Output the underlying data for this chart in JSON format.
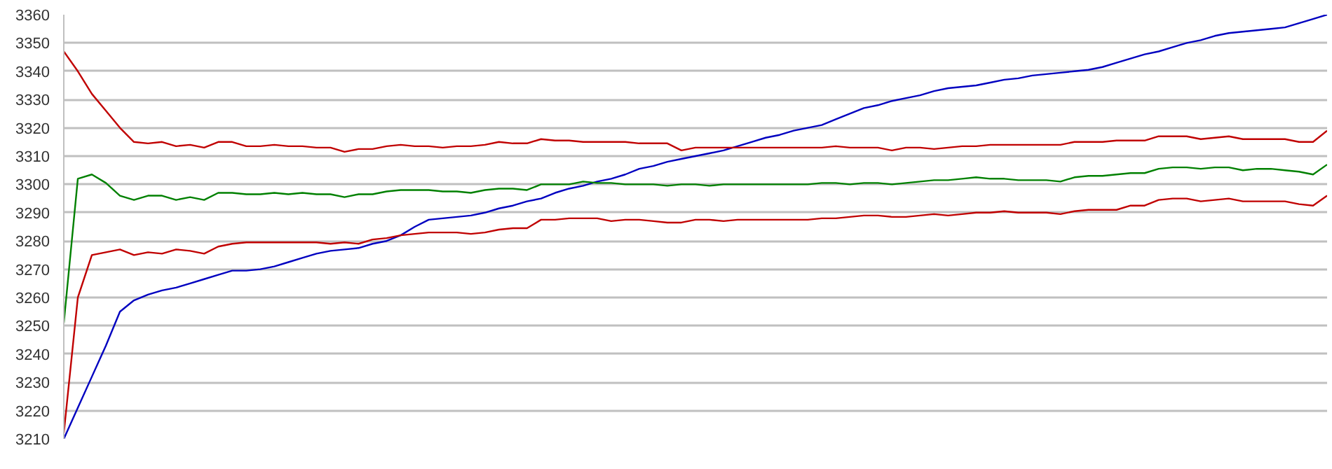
{
  "chart_data": {
    "type": "line",
    "categories": [
      null,
      null,
      null,
      null,
      null,
      null,
      null,
      null,
      null,
      null,
      null,
      null,
      null,
      null,
      null,
      null,
      null,
      null,
      null,
      null,
      null,
      null,
      null,
      null,
      null,
      null,
      null,
      null,
      null,
      null,
      null,
      null,
      null,
      null,
      null,
      null,
      null,
      null,
      null,
      null,
      null,
      null,
      null,
      null,
      null,
      null,
      null,
      null,
      null,
      null,
      null,
      null,
      null,
      null,
      null,
      null,
      null,
      null,
      null,
      null,
      null,
      null,
      null,
      null,
      null,
      null,
      null,
      null,
      null,
      null,
      null,
      null,
      null,
      null,
      null,
      null,
      null,
      null,
      null,
      null,
      null,
      null,
      null,
      null,
      null,
      null,
      null,
      null,
      null,
      null,
      null
    ],
    "series": [
      {
        "color": "#0000c0",
        "values": [
          3210,
          3221,
          3232,
          3243,
          3255,
          3259,
          3261,
          3262.5,
          3263.5,
          3265,
          3266.5,
          3268,
          3269.5,
          3269.5,
          3270,
          3271,
          3272.5,
          3274,
          3275.5,
          3276.5,
          3277,
          3277.5,
          3279,
          3280,
          3282,
          3285,
          3287.5,
          3288,
          3288.5,
          3289,
          3290,
          3291.5,
          3292.5,
          3294,
          3295,
          3297,
          3298.5,
          3299.5,
          3301,
          3302,
          3303.5,
          3305.5,
          3306.5,
          3308,
          3309,
          3310,
          3311,
          3312,
          3313.5,
          3315,
          3316.5,
          3317.5,
          3319,
          3320,
          3321,
          3323,
          3325,
          3327,
          3328,
          3329.5,
          3330.5,
          3331.5,
          3333,
          3334,
          3334.5,
          3335,
          3336,
          3337,
          3337.5,
          3338.5,
          3339,
          3339.5,
          3340,
          3340.5,
          3341.5,
          3343,
          3344.5,
          3346,
          3347,
          3348.5,
          3350,
          3351,
          3352.5,
          3353.5,
          3354,
          3354.5,
          3355,
          3355.5,
          3357,
          3358.5,
          3360
        ]
      },
      {
        "color": "#008000",
        "values": [
          3251,
          3302,
          3303.5,
          3300.5,
          3296,
          3294.5,
          3296,
          3296,
          3294.5,
          3295.5,
          3294.5,
          3297,
          3297,
          3296.5,
          3296.5,
          3297,
          3296.5,
          3297,
          3296.5,
          3296.5,
          3295.5,
          3296.5,
          3296.5,
          3297.5,
          3298,
          3298,
          3298,
          3297.5,
          3297.5,
          3297,
          3298,
          3298.5,
          3298.5,
          3298,
          3300,
          3300,
          3300,
          3301,
          3300.5,
          3300.5,
          3300,
          3300,
          3300,
          3299.5,
          3300,
          3300,
          3299.5,
          3300,
          3300,
          3300,
          3300,
          3300,
          3300,
          3300,
          3300.5,
          3300.5,
          3300,
          3300.5,
          3300.5,
          3300,
          3300.5,
          3301,
          3301.5,
          3301.5,
          3302,
          3302.5,
          3302,
          3302,
          3301.5,
          3301.5,
          3301.5,
          3301,
          3302.5,
          3303,
          3303,
          3303.5,
          3304,
          3304,
          3305.5,
          3306,
          3306,
          3305.5,
          3306,
          3306,
          3305,
          3305.5,
          3305.5,
          3305,
          3304.5,
          3303.5,
          3307
        ]
      },
      {
        "color": "#c00000",
        "values": [
          3347,
          3340,
          3332,
          3326,
          3320,
          3315,
          3314.5,
          3315,
          3313.5,
          3314,
          3313,
          3315,
          3315,
          3313.5,
          3313.5,
          3314,
          3313.5,
          3313.5,
          3313,
          3313,
          3311.5,
          3312.5,
          3312.5,
          3313.5,
          3314,
          3313.5,
          3313.5,
          3313,
          3313.5,
          3313.5,
          3314,
          3315,
          3314.5,
          3314.5,
          3316,
          3315.5,
          3315.5,
          3315,
          3315,
          3315,
          3315,
          3314.5,
          3314.5,
          3314.5,
          3312,
          3313,
          3313,
          3313,
          3313,
          3313,
          3313,
          3313,
          3313,
          3313,
          3313,
          3313.5,
          3313,
          3313,
          3313,
          3312,
          3313,
          3313,
          3312.5,
          3313,
          3313.5,
          3313.5,
          3314,
          3314,
          3314,
          3314,
          3314,
          3314,
          3315,
          3315,
          3315,
          3315.5,
          3315.5,
          3315.5,
          3317,
          3317,
          3317,
          3316,
          3316.5,
          3317,
          3316,
          3316,
          3316,
          3316,
          3315,
          3315,
          3319
        ]
      },
      {
        "color": "#c00000",
        "values": [
          3212,
          3260,
          3275,
          3276,
          3277,
          3275,
          3276,
          3275.5,
          3277,
          3276.5,
          3275.5,
          3278,
          3279,
          3279.5,
          3279.5,
          3279.5,
          3279.5,
          3279.5,
          3279.5,
          3279,
          3279.5,
          3279,
          3280.5,
          3281,
          3282,
          3282.5,
          3283,
          3283,
          3283,
          3282.5,
          3283,
          3284,
          3284.5,
          3284.5,
          3287.5,
          3287.5,
          3288,
          3288,
          3288,
          3287,
          3287.5,
          3287.5,
          3287,
          3286.5,
          3286.5,
          3287.5,
          3287.5,
          3287,
          3287.5,
          3287.5,
          3287.5,
          3287.5,
          3287.5,
          3287.5,
          3288,
          3288,
          3288.5,
          3289,
          3289,
          3288.5,
          3288.5,
          3289,
          3289.5,
          3289,
          3289.5,
          3290,
          3290,
          3290.5,
          3290,
          3290,
          3290,
          3289.5,
          3290.5,
          3291,
          3291,
          3291,
          3292.5,
          3292.5,
          3294.5,
          3295,
          3295,
          3294,
          3294.5,
          3295,
          3294,
          3294,
          3294,
          3294,
          3293,
          3292.5,
          3296
        ]
      }
    ],
    "ylim": [
      3210,
      3360
    ],
    "yticks": [
      3210,
      3220,
      3230,
      3240,
      3250,
      3260,
      3270,
      3280,
      3290,
      3300,
      3310,
      3320,
      3330,
      3340,
      3350,
      3360
    ],
    "grid": "y",
    "tick_labels": "y",
    "marker": "none",
    "line_style": "solid"
  }
}
